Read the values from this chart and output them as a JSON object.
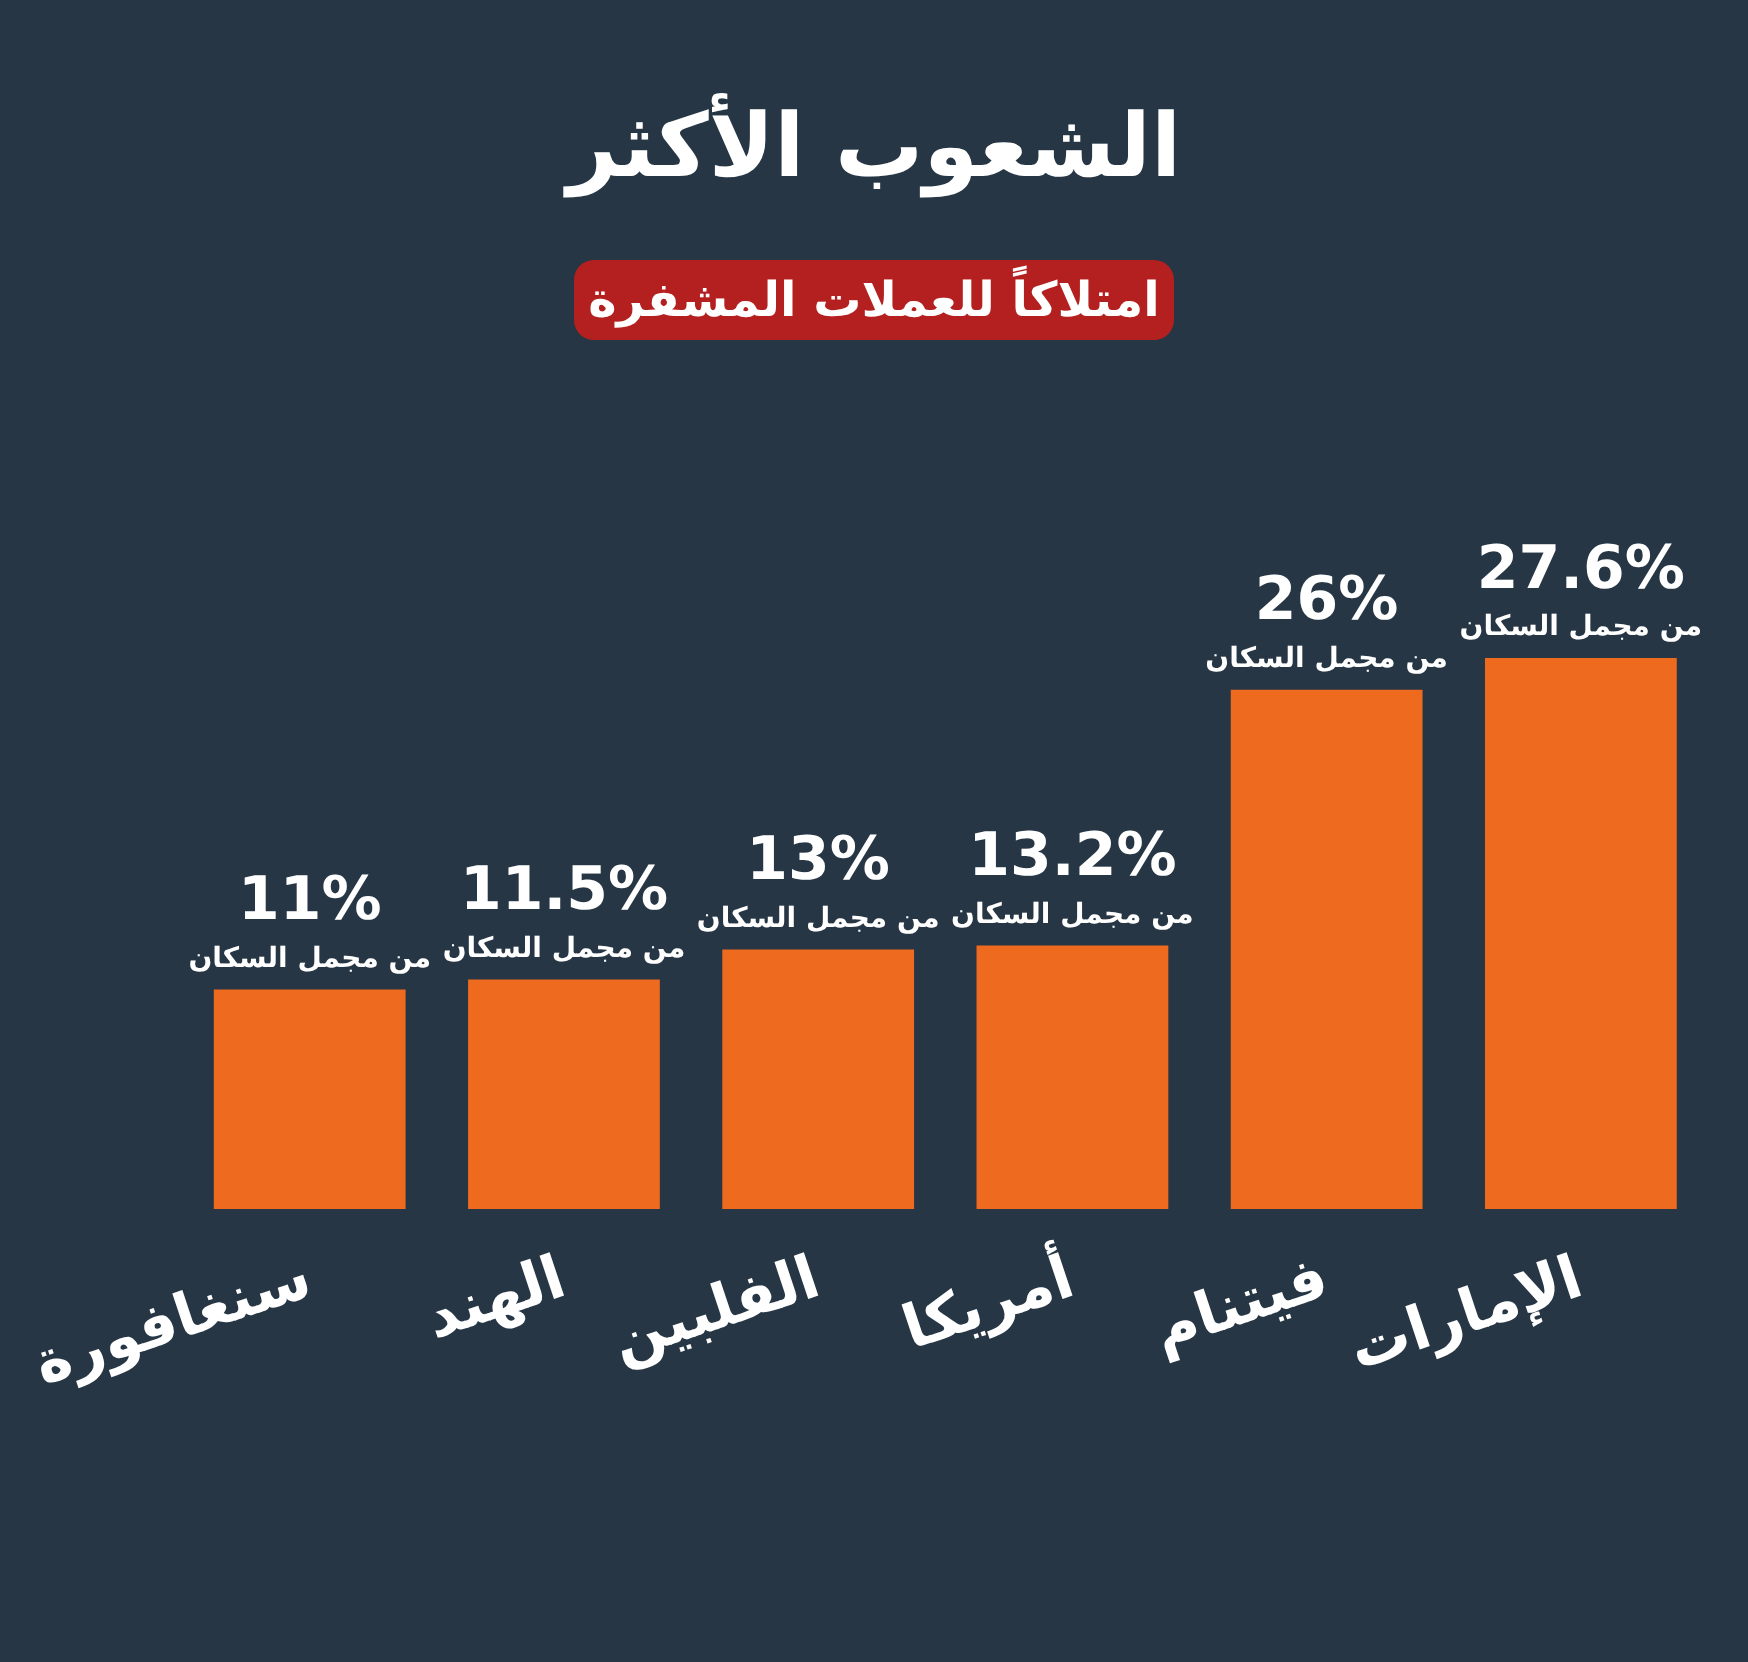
{
  "chart_data": {
    "type": "bar",
    "title": "الشعوب الأكثر",
    "subtitle": "امتلاكاً للعملات المشفرة",
    "categories": [
      "سنغافورة",
      "الهند",
      "الفلبين",
      "أمريكا",
      "فيتنام",
      "الإمارات"
    ],
    "values": [
      11,
      11.5,
      13,
      13.2,
      26,
      27.6
    ],
    "value_labels": [
      "11%",
      "11.5%",
      "13%",
      "13.2%",
      "26%",
      "27.6%"
    ],
    "color": "#ee6a1e",
    "annotations": [
      {
        "text": "من مجمل السكان",
        "x": "سنغافورة",
        "y": 11
      },
      {
        "text": "من مجمل السكان",
        "x": "الهند",
        "y": 11.5
      },
      {
        "text": "من مجمل السكان",
        "x": "الفلبين",
        "y": 13
      },
      {
        "text": "من مجمل السكان",
        "x": "أمريكا",
        "y": 13.2
      },
      {
        "text": "من مجمل السكان",
        "x": "فيتنام",
        "y": 26
      },
      {
        "text": "من مجمل السكان",
        "x": "الإمارات",
        "y": 27.6
      }
    ],
    "grid": false,
    "legend": false,
    "tick_labels": "x"
  }
}
